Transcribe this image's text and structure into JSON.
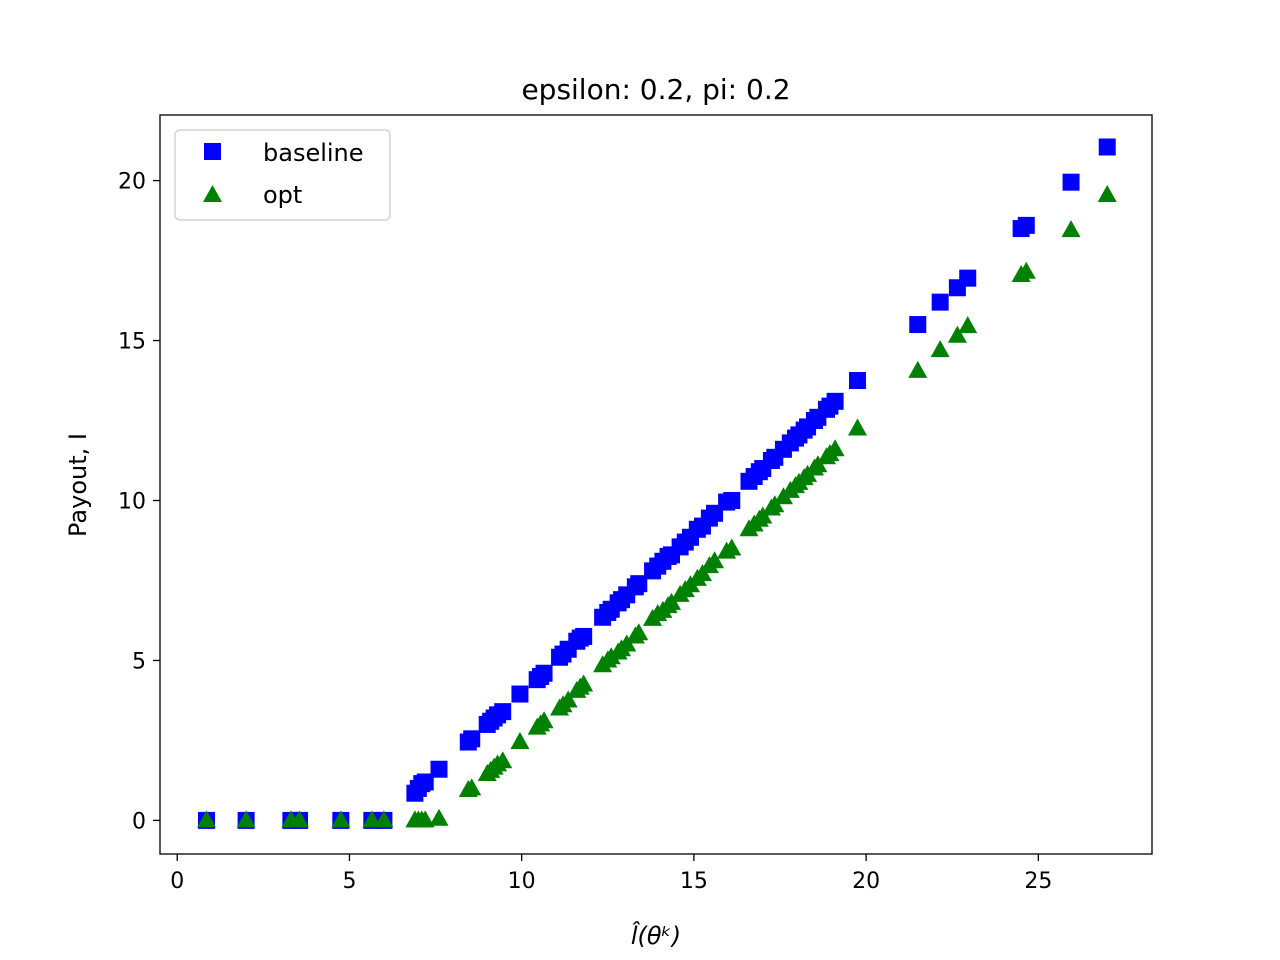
{
  "chart_data": {
    "type": "scatter",
    "title": "epsilon: 0.2, pi: 0.2",
    "xlabel": "l̂(θᵏ)",
    "ylabel": "Payout, I",
    "xlim": [
      -0.5,
      28.3
    ],
    "ylim": [
      -1.05,
      22.05
    ],
    "xticks": [
      0,
      5,
      10,
      15,
      20,
      25
    ],
    "yticks": [
      0,
      5,
      10,
      15,
      20
    ],
    "grid": false,
    "legend_position": "top-left",
    "series": [
      {
        "name": "baseline",
        "marker": "square",
        "color": "#0000ff",
        "x": [
          0.85,
          2.0,
          3.3,
          3.55,
          4.75,
          5.65,
          6.0,
          6.9,
          7.0,
          7.1,
          7.2,
          7.6,
          8.45,
          8.55,
          9.0,
          9.1,
          9.2,
          9.3,
          9.45,
          9.95,
          10.45,
          10.55,
          10.65,
          11.1,
          11.2,
          11.35,
          11.6,
          11.7,
          11.8,
          12.35,
          12.5,
          12.6,
          12.8,
          12.9,
          13.05,
          13.3,
          13.4,
          13.8,
          13.95,
          14.1,
          14.25,
          14.35,
          14.6,
          14.75,
          14.9,
          15.1,
          15.25,
          15.45,
          15.6,
          15.95,
          16.1,
          16.6,
          16.75,
          16.9,
          17.0,
          17.25,
          17.35,
          17.6,
          17.8,
          17.95,
          18.05,
          18.2,
          18.3,
          18.5,
          18.6,
          18.85,
          18.95,
          19.1,
          19.75,
          21.5,
          22.15,
          22.65,
          22.95,
          24.5,
          24.65,
          25.95,
          27.0
        ],
        "y": [
          0.0,
          0.0,
          0.0,
          0.0,
          0.0,
          0.0,
          0.0,
          0.85,
          1.0,
          1.15,
          1.2,
          1.6,
          2.45,
          2.55,
          3.0,
          3.1,
          3.2,
          3.3,
          3.4,
          3.95,
          4.4,
          4.5,
          4.6,
          5.1,
          5.2,
          5.35,
          5.6,
          5.7,
          5.75,
          6.35,
          6.5,
          6.6,
          6.8,
          6.9,
          7.05,
          7.3,
          7.4,
          7.8,
          7.95,
          8.1,
          8.25,
          8.3,
          8.55,
          8.7,
          8.85,
          9.1,
          9.2,
          9.45,
          9.6,
          9.95,
          10.0,
          10.6,
          10.75,
          10.9,
          11.0,
          11.25,
          11.35,
          11.6,
          11.8,
          11.95,
          12.05,
          12.2,
          12.3,
          12.5,
          12.6,
          12.85,
          12.95,
          13.1,
          13.75,
          15.5,
          16.2,
          16.65,
          16.95,
          18.5,
          18.6,
          19.95,
          21.05
        ]
      },
      {
        "name": "opt",
        "marker": "triangle",
        "color": "#008000",
        "x": [
          0.85,
          2.0,
          3.3,
          3.55,
          4.75,
          5.65,
          6.0,
          6.9,
          7.0,
          7.1,
          7.2,
          7.6,
          8.45,
          8.55,
          9.0,
          9.1,
          9.2,
          9.3,
          9.45,
          9.95,
          10.45,
          10.55,
          10.65,
          11.1,
          11.2,
          11.35,
          11.6,
          11.7,
          11.8,
          12.35,
          12.5,
          12.6,
          12.8,
          12.9,
          13.05,
          13.3,
          13.4,
          13.8,
          13.95,
          14.1,
          14.25,
          14.35,
          14.6,
          14.75,
          14.9,
          15.1,
          15.25,
          15.45,
          15.6,
          15.95,
          16.1,
          16.6,
          16.75,
          16.9,
          17.0,
          17.25,
          17.35,
          17.6,
          17.8,
          17.95,
          18.05,
          18.2,
          18.3,
          18.5,
          18.6,
          18.85,
          18.95,
          19.1,
          19.75,
          21.5,
          22.15,
          22.65,
          22.95,
          24.5,
          24.65,
          25.95,
          27.0
        ],
        "y": [
          0.0,
          0.0,
          0.0,
          0.0,
          0.0,
          0.0,
          0.0,
          0.0,
          0.0,
          0.0,
          0.0,
          0.05,
          0.95,
          1.0,
          1.45,
          1.55,
          1.65,
          1.75,
          1.85,
          2.45,
          2.9,
          3.0,
          3.1,
          3.5,
          3.6,
          3.75,
          4.05,
          4.15,
          4.25,
          4.85,
          5.0,
          5.1,
          5.25,
          5.35,
          5.5,
          5.75,
          5.85,
          6.3,
          6.45,
          6.55,
          6.7,
          6.8,
          7.05,
          7.2,
          7.35,
          7.55,
          7.7,
          7.95,
          8.1,
          8.4,
          8.5,
          9.1,
          9.25,
          9.4,
          9.5,
          9.75,
          9.85,
          10.1,
          10.3,
          10.45,
          10.55,
          10.7,
          10.8,
          11.0,
          11.1,
          11.35,
          11.45,
          11.6,
          12.25,
          14.05,
          14.7,
          15.15,
          15.45,
          17.05,
          17.15,
          18.45,
          19.55
        ]
      }
    ]
  }
}
